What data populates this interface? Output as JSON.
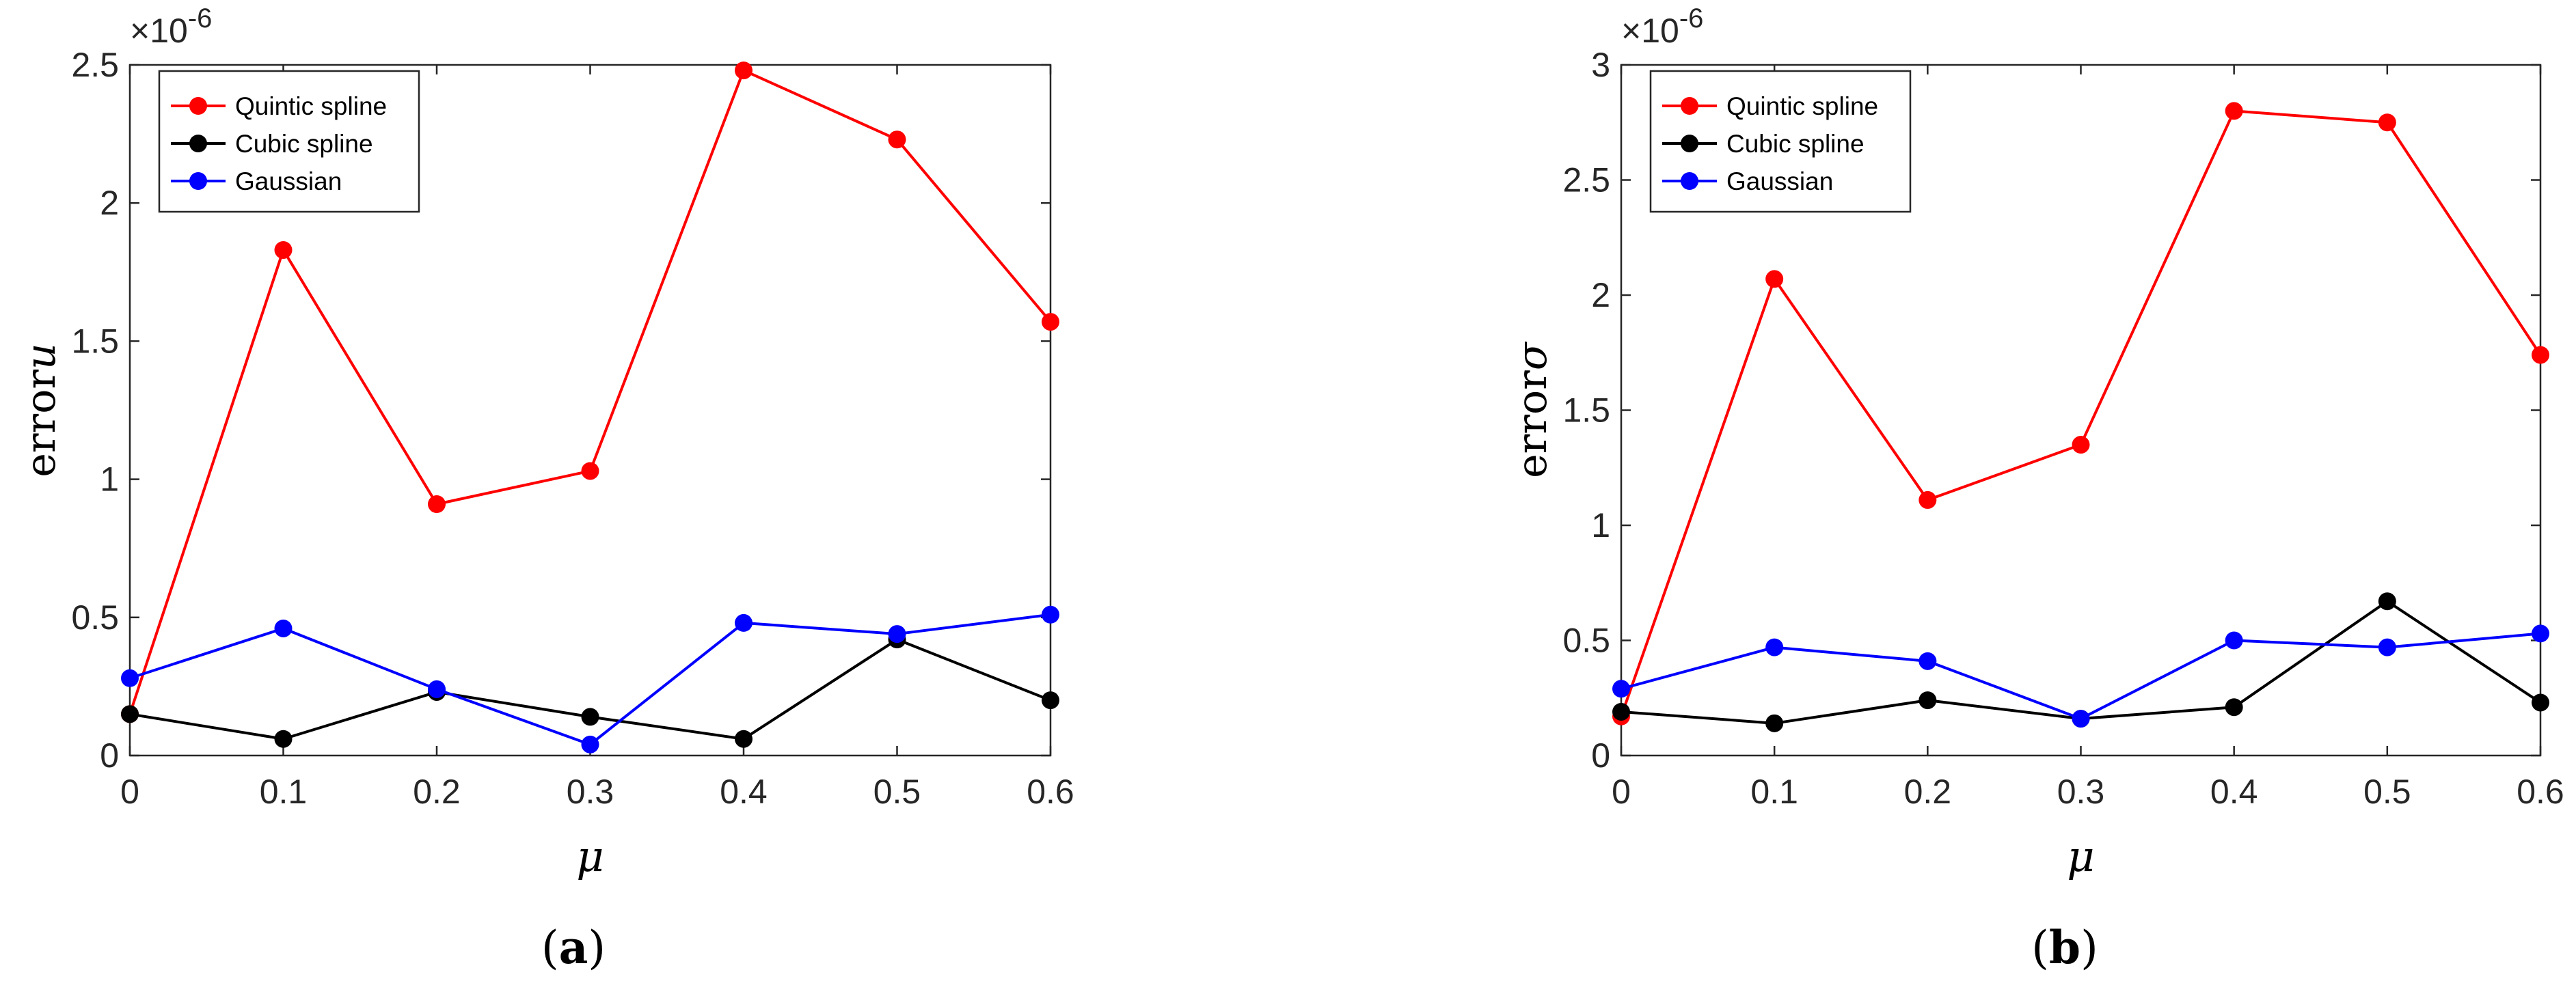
{
  "colors": {
    "quintic": "#ff0000",
    "cubic": "#000000",
    "gaussian": "#0000ff",
    "axis": "#262626"
  },
  "chart_data": [
    {
      "id": "a",
      "type": "line",
      "caption": {
        "open": "(",
        "letter": "a",
        "close": ")"
      },
      "ylabel_text": "error",
      "ylabel_symbol": "u",
      "xlabel": "μ",
      "exponent_label": "×10-6",
      "exponent_base": "×10",
      "exponent_power": "-6",
      "x": [
        0,
        0.1,
        0.2,
        0.3,
        0.4,
        0.5,
        0.6
      ],
      "x_tick_labels": [
        "0",
        "0.1",
        "0.2",
        "0.3",
        "0.4",
        "0.5",
        "0.6"
      ],
      "xlim": [
        0,
        0.6
      ],
      "ylim": [
        0,
        2.5
      ],
      "y_ticks": [
        0,
        0.5,
        1,
        1.5,
        2,
        2.5
      ],
      "y_tick_labels": [
        "0",
        "0.5",
        "1",
        "1.5",
        "2",
        "2.5"
      ],
      "legend_position": "top-left",
      "series": [
        {
          "name": "Quintic spline",
          "color": "#ff0000",
          "values": [
            0.15,
            1.83,
            0.91,
            1.03,
            2.48,
            2.23,
            1.57
          ]
        },
        {
          "name": "Cubic spline",
          "color": "#000000",
          "values": [
            0.15,
            0.06,
            0.23,
            0.14,
            0.06,
            0.42,
            0.2
          ]
        },
        {
          "name": "Gaussian",
          "color": "#0000ff",
          "values": [
            0.28,
            0.46,
            0.24,
            0.04,
            0.48,
            0.44,
            0.51
          ]
        }
      ]
    },
    {
      "id": "b",
      "type": "line",
      "caption": {
        "open": "(",
        "letter": "b",
        "close": ")"
      },
      "ylabel_text": "error",
      "ylabel_symbol": "σ",
      "xlabel": "μ",
      "exponent_label": "×10-6",
      "exponent_base": "×10",
      "exponent_power": "-6",
      "x": [
        0,
        0.1,
        0.2,
        0.3,
        0.4,
        0.5,
        0.6
      ],
      "x_tick_labels": [
        "0",
        "0.1",
        "0.2",
        "0.3",
        "0.4",
        "0.5",
        "0.6"
      ],
      "xlim": [
        0,
        0.6
      ],
      "ylim": [
        0,
        3
      ],
      "y_ticks": [
        0,
        0.5,
        1,
        1.5,
        2,
        2.5,
        3
      ],
      "y_tick_labels": [
        "0",
        "0.5",
        "1",
        "1.5",
        "2",
        "2.5",
        "3"
      ],
      "legend_position": "top-left",
      "series": [
        {
          "name": "Quintic spline",
          "color": "#ff0000",
          "values": [
            0.17,
            2.07,
            1.11,
            1.35,
            2.8,
            2.75,
            1.74
          ]
        },
        {
          "name": "Cubic spline",
          "color": "#000000",
          "values": [
            0.19,
            0.14,
            0.24,
            0.16,
            0.21,
            0.67,
            0.23
          ]
        },
        {
          "name": "Gaussian",
          "color": "#0000ff",
          "values": [
            0.29,
            0.47,
            0.41,
            0.16,
            0.5,
            0.47,
            0.53
          ]
        }
      ]
    }
  ]
}
